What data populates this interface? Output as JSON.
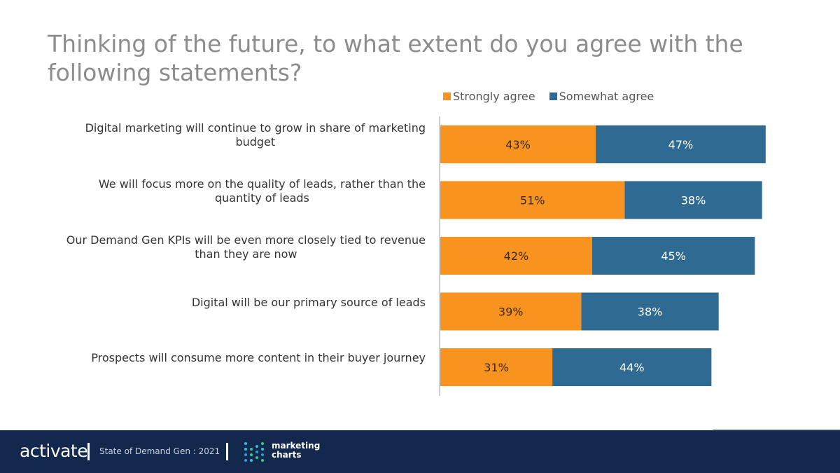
{
  "title": "Thinking of the future, to what extent do you agree with the following statements?",
  "colors": {
    "strongly": "#f7931e",
    "somewhat": "#2e6a92",
    "axis": "#d0d0d0"
  },
  "chart_data": {
    "type": "bar",
    "orientation": "horizontal",
    "stacked": true,
    "categories": [
      "Digital marketing will continue to grow in share of marketing budget",
      "We will focus more on the quality of leads, rather than the quantity of leads",
      "Our Demand Gen KPIs will be even more closely tied to revenue than they are now",
      "Digital will be our primary source of leads",
      "Prospects will consume more content in their buyer journey"
    ],
    "series": [
      {
        "name": "Strongly agree",
        "values": [
          43,
          51,
          42,
          39,
          31
        ],
        "labels": [
          "43%",
          "51%",
          "42%",
          "39%",
          "31%"
        ]
      },
      {
        "name": "Somewhat agree",
        "values": [
          47,
          38,
          45,
          38,
          44
        ],
        "labels": [
          "47%",
          "38%",
          "45%",
          "38%",
          "44%"
        ]
      }
    ],
    "title": "Thinking of the future, to what extent do you agree with the following statements?",
    "xlabel": "",
    "ylabel": "",
    "xlim": [
      0,
      91
    ],
    "legend": "top"
  },
  "row_labels": [
    [
      "Digital marketing will continue to grow in share of marketing",
      "budget"
    ],
    [
      "We will focus more on the quality of leads, rather than the",
      "quantity of leads"
    ],
    [
      "Our Demand Gen KPIs will be even more closely tied to revenue",
      "than they are now"
    ],
    [
      "Digital will be our primary source of leads"
    ],
    [
      "Prospects will consume more content in their buyer journey"
    ]
  ],
  "footer": {
    "brand": "activate",
    "report": "State of Demand Gen : 2021",
    "partner_line1": "marketing",
    "partner_line2": "charts"
  }
}
